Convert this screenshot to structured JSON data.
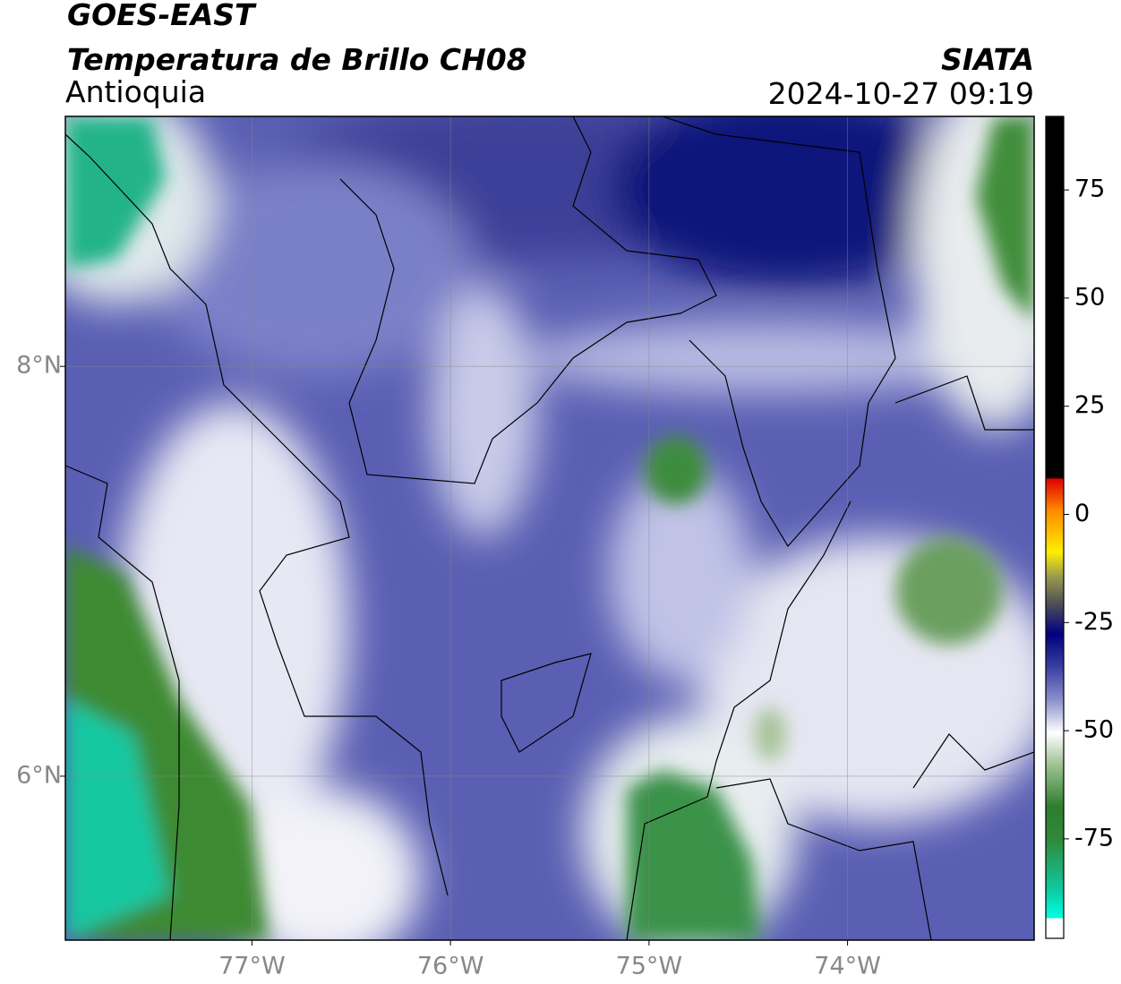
{
  "header": {
    "satellite": "GOES-EAST",
    "product": "Temperatura de Brillo CH08",
    "region": "Antioquia",
    "source": "SIATA",
    "datetime": "2024-10-27 09:19"
  },
  "map": {
    "xlim": [
      -77.94,
      -73.06
    ],
    "ylim": [
      5.2,
      9.22
    ],
    "xticks": [
      {
        "value": -77,
        "label": "77°W"
      },
      {
        "value": -76,
        "label": "76°W"
      },
      {
        "value": -75,
        "label": "75°W"
      },
      {
        "value": -74,
        "label": "74°W"
      }
    ],
    "yticks": [
      {
        "value": 8,
        "label": "8°N"
      },
      {
        "value": 6,
        "label": "6°N"
      }
    ],
    "grid": true
  },
  "colorbar": {
    "lim": [
      -98,
      92
    ],
    "ticks": [
      75,
      50,
      25,
      0,
      -25,
      -50,
      -75
    ]
  }
}
